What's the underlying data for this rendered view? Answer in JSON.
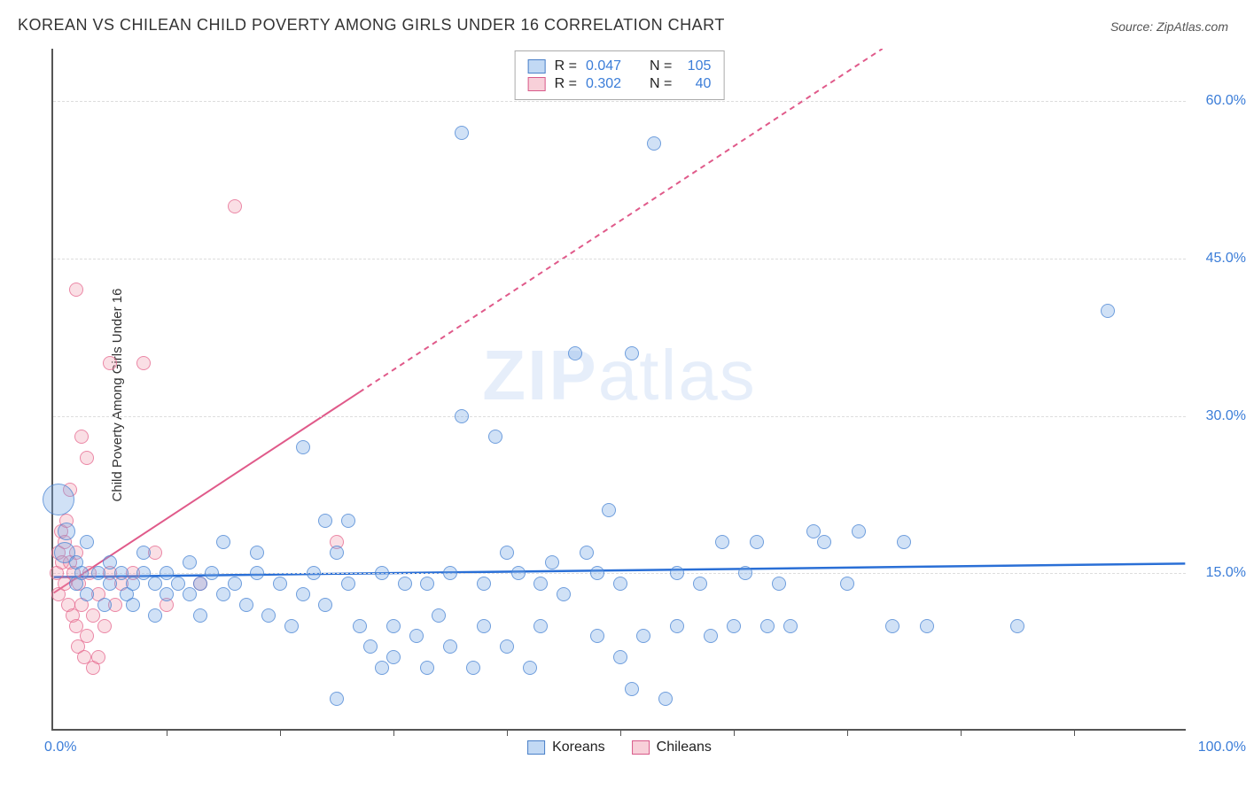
{
  "title": "KOREAN VS CHILEAN CHILD POVERTY AMONG GIRLS UNDER 16 CORRELATION CHART",
  "source": "Source: ZipAtlas.com",
  "ylabel": "Child Poverty Among Girls Under 16",
  "watermark_bold": "ZIP",
  "watermark_rest": "atlas",
  "chart": {
    "type": "scatter",
    "xlim": [
      0,
      100
    ],
    "ylim": [
      0,
      65
    ],
    "x_axis_min_label": "0.0%",
    "x_axis_max_label": "100.0%",
    "y_ticks": [
      15,
      30,
      45,
      60
    ],
    "y_tick_labels": [
      "15.0%",
      "30.0%",
      "45.0%",
      "60.0%"
    ],
    "x_tick_positions": [
      10,
      20,
      30,
      40,
      50,
      60,
      70,
      80,
      90
    ],
    "grid_color": "#dddddd",
    "axis_color": "#555555",
    "background_color": "#ffffff",
    "point_radius_default": 8,
    "series_colors": {
      "korean_fill": "rgba(120,170,230,0.35)",
      "korean_stroke": "#4a80c8",
      "chilean_fill": "rgba(240,150,170,0.30)",
      "chilean_stroke": "#d85a8a"
    },
    "trendlines": {
      "korean": {
        "y_at_x0": 14.5,
        "y_at_x100": 15.8,
        "color": "#2a6fd6",
        "width": 2.5,
        "solid_until_x": 100
      },
      "chilean": {
        "y_at_x0": 13.0,
        "y_at_x100": 84.0,
        "color": "#e05a8a",
        "width": 2,
        "solid_until_x": 27,
        "dash": "6,5"
      }
    },
    "legend_stats": {
      "series": [
        {
          "swatch": "blue",
          "r_label": "R =",
          "r": "0.047",
          "n_label": "N =",
          "n": "105"
        },
        {
          "swatch": "pink",
          "r_label": "R =",
          "r": "0.302",
          "n_label": "N =",
          "n": "40"
        }
      ]
    },
    "legend_bottom": [
      {
        "swatch": "blue",
        "label": "Koreans"
      },
      {
        "swatch": "pink",
        "label": "Chileans"
      }
    ],
    "korean_points": [
      {
        "x": 0.5,
        "y": 22,
        "r": 18
      },
      {
        "x": 1,
        "y": 17,
        "r": 12
      },
      {
        "x": 1.2,
        "y": 19,
        "r": 10
      },
      {
        "x": 2,
        "y": 14
      },
      {
        "x": 2,
        "y": 16
      },
      {
        "x": 2.5,
        "y": 15
      },
      {
        "x": 3,
        "y": 18
      },
      {
        "x": 3,
        "y": 13
      },
      {
        "x": 4,
        "y": 15
      },
      {
        "x": 4.5,
        "y": 12
      },
      {
        "x": 5,
        "y": 14
      },
      {
        "x": 5,
        "y": 16
      },
      {
        "x": 6,
        "y": 15
      },
      {
        "x": 6.5,
        "y": 13
      },
      {
        "x": 7,
        "y": 14
      },
      {
        "x": 7,
        "y": 12
      },
      {
        "x": 8,
        "y": 15
      },
      {
        "x": 8,
        "y": 17
      },
      {
        "x": 9,
        "y": 14
      },
      {
        "x": 9,
        "y": 11
      },
      {
        "x": 10,
        "y": 15
      },
      {
        "x": 10,
        "y": 13
      },
      {
        "x": 11,
        "y": 14
      },
      {
        "x": 12,
        "y": 16
      },
      {
        "x": 12,
        "y": 13
      },
      {
        "x": 13,
        "y": 14
      },
      {
        "x": 13,
        "y": 11
      },
      {
        "x": 14,
        "y": 15
      },
      {
        "x": 15,
        "y": 13
      },
      {
        "x": 15,
        "y": 18
      },
      {
        "x": 16,
        "y": 14
      },
      {
        "x": 17,
        "y": 12
      },
      {
        "x": 18,
        "y": 15
      },
      {
        "x": 18,
        "y": 17
      },
      {
        "x": 19,
        "y": 11
      },
      {
        "x": 20,
        "y": 14
      },
      {
        "x": 21,
        "y": 10
      },
      {
        "x": 22,
        "y": 27
      },
      {
        "x": 22,
        "y": 13
      },
      {
        "x": 23,
        "y": 15
      },
      {
        "x": 24,
        "y": 12
      },
      {
        "x": 24,
        "y": 20
      },
      {
        "x": 25,
        "y": 3
      },
      {
        "x": 25,
        "y": 17
      },
      {
        "x": 26,
        "y": 14
      },
      {
        "x": 26,
        "y": 20
      },
      {
        "x": 27,
        "y": 10
      },
      {
        "x": 28,
        "y": 8
      },
      {
        "x": 29,
        "y": 15
      },
      {
        "x": 29,
        "y": 6
      },
      {
        "x": 30,
        "y": 10
      },
      {
        "x": 30,
        "y": 7
      },
      {
        "x": 31,
        "y": 14
      },
      {
        "x": 32,
        "y": 9
      },
      {
        "x": 33,
        "y": 14
      },
      {
        "x": 33,
        "y": 6
      },
      {
        "x": 34,
        "y": 11
      },
      {
        "x": 35,
        "y": 15
      },
      {
        "x": 35,
        "y": 8
      },
      {
        "x": 36,
        "y": 30
      },
      {
        "x": 36,
        "y": 57
      },
      {
        "x": 37,
        "y": 6
      },
      {
        "x": 38,
        "y": 10
      },
      {
        "x": 38,
        "y": 14
      },
      {
        "x": 39,
        "y": 28
      },
      {
        "x": 40,
        "y": 17
      },
      {
        "x": 40,
        "y": 8
      },
      {
        "x": 41,
        "y": 15
      },
      {
        "x": 42,
        "y": 6
      },
      {
        "x": 43,
        "y": 14
      },
      {
        "x": 43,
        "y": 10
      },
      {
        "x": 44,
        "y": 16
      },
      {
        "x": 45,
        "y": 13
      },
      {
        "x": 46,
        "y": 36
      },
      {
        "x": 47,
        "y": 17
      },
      {
        "x": 48,
        "y": 15
      },
      {
        "x": 48,
        "y": 9
      },
      {
        "x": 49,
        "y": 21
      },
      {
        "x": 50,
        "y": 7
      },
      {
        "x": 50,
        "y": 14
      },
      {
        "x": 51,
        "y": 4
      },
      {
        "x": 51,
        "y": 36
      },
      {
        "x": 52,
        "y": 9
      },
      {
        "x": 53,
        "y": 56
      },
      {
        "x": 54,
        "y": 3
      },
      {
        "x": 55,
        "y": 15
      },
      {
        "x": 55,
        "y": 10
      },
      {
        "x": 57,
        "y": 14
      },
      {
        "x": 58,
        "y": 9
      },
      {
        "x": 59,
        "y": 18
      },
      {
        "x": 60,
        "y": 10
      },
      {
        "x": 61,
        "y": 15
      },
      {
        "x": 62,
        "y": 18
      },
      {
        "x": 63,
        "y": 10
      },
      {
        "x": 64,
        "y": 14
      },
      {
        "x": 65,
        "y": 10
      },
      {
        "x": 67,
        "y": 19
      },
      {
        "x": 68,
        "y": 18
      },
      {
        "x": 70,
        "y": 14
      },
      {
        "x": 71,
        "y": 19
      },
      {
        "x": 74,
        "y": 10
      },
      {
        "x": 75,
        "y": 18
      },
      {
        "x": 77,
        "y": 10
      },
      {
        "x": 85,
        "y": 10
      },
      {
        "x": 93,
        "y": 40
      }
    ],
    "chilean_points": [
      {
        "x": 0.3,
        "y": 15
      },
      {
        "x": 0.5,
        "y": 17
      },
      {
        "x": 0.5,
        "y": 13
      },
      {
        "x": 0.7,
        "y": 19
      },
      {
        "x": 0.8,
        "y": 16
      },
      {
        "x": 1,
        "y": 18
      },
      {
        "x": 1,
        "y": 14
      },
      {
        "x": 1.2,
        "y": 20
      },
      {
        "x": 1.3,
        "y": 12
      },
      {
        "x": 1.5,
        "y": 16
      },
      {
        "x": 1.5,
        "y": 23
      },
      {
        "x": 1.7,
        "y": 11
      },
      {
        "x": 1.8,
        "y": 15
      },
      {
        "x": 2,
        "y": 42
      },
      {
        "x": 2,
        "y": 10
      },
      {
        "x": 2,
        "y": 17
      },
      {
        "x": 2.2,
        "y": 8
      },
      {
        "x": 2.3,
        "y": 14
      },
      {
        "x": 2.5,
        "y": 28
      },
      {
        "x": 2.5,
        "y": 12
      },
      {
        "x": 2.7,
        "y": 7
      },
      {
        "x": 3,
        "y": 26
      },
      {
        "x": 3,
        "y": 9
      },
      {
        "x": 3.2,
        "y": 15
      },
      {
        "x": 3.5,
        "y": 6
      },
      {
        "x": 3.5,
        "y": 11
      },
      {
        "x": 4,
        "y": 7
      },
      {
        "x": 4,
        "y": 13
      },
      {
        "x": 4.5,
        "y": 10
      },
      {
        "x": 5,
        "y": 15
      },
      {
        "x": 5,
        "y": 35
      },
      {
        "x": 5.5,
        "y": 12
      },
      {
        "x": 6,
        "y": 14
      },
      {
        "x": 7,
        "y": 15
      },
      {
        "x": 8,
        "y": 35
      },
      {
        "x": 9,
        "y": 17
      },
      {
        "x": 10,
        "y": 12
      },
      {
        "x": 13,
        "y": 14
      },
      {
        "x": 16,
        "y": 50
      },
      {
        "x": 25,
        "y": 18
      }
    ]
  }
}
